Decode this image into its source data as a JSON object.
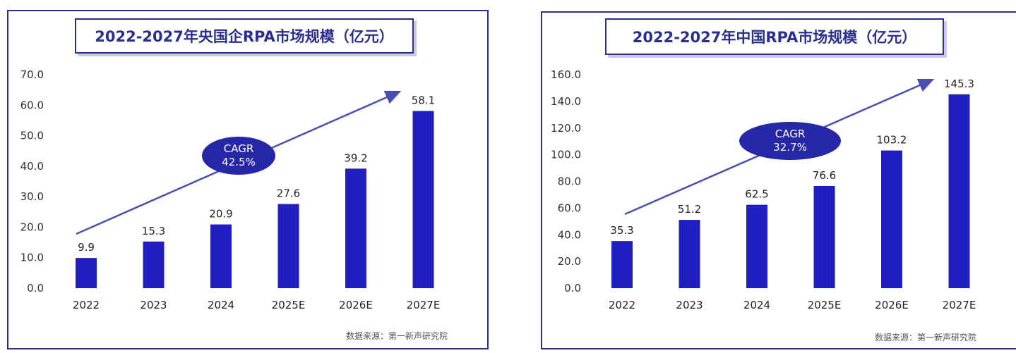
{
  "colors": {
    "bar": "#2020c0",
    "frame": "#2a2f8f",
    "ellipse": "#2626a8",
    "arrow": "#4a50b0"
  },
  "chart_data": [
    {
      "type": "bar",
      "title": "2022-2027年央国企RPA市场规模（亿元）",
      "categories": [
        "2022",
        "2023",
        "2024",
        "2025E",
        "2026E",
        "2027E"
      ],
      "values": [
        9.9,
        15.3,
        20.9,
        27.6,
        39.2,
        58.1
      ],
      "value_labels": [
        "9.9",
        "15.3",
        "20.9",
        "27.6",
        "39.2",
        "58.1"
      ],
      "yticks": [
        "0.0",
        "10.0",
        "20.0",
        "30.0",
        "40.0",
        "50.0",
        "60.0",
        "70.0"
      ],
      "ylim": [
        0,
        70
      ],
      "xlabel": "",
      "ylabel": "",
      "grid": false,
      "legend": "none",
      "cagr_label": "CAGR",
      "cagr_value": "42.5%",
      "source": "数据来源：第一新声研究院"
    },
    {
      "type": "bar",
      "title": "2022-2027年中国RPA市场规模（亿元）",
      "categories": [
        "2022",
        "2023",
        "2024",
        "2025E",
        "2026E",
        "2027E"
      ],
      "values": [
        35.3,
        51.2,
        62.5,
        76.6,
        103.2,
        145.3
      ],
      "value_labels": [
        "35.3",
        "51.2",
        "62.5",
        "76.6",
        "103.2",
        "145.3"
      ],
      "yticks": [
        "0.0",
        "20.0",
        "40.0",
        "60.0",
        "80.0",
        "100.0",
        "120.0",
        "140.0",
        "160.0"
      ],
      "ylim": [
        0,
        160
      ],
      "xlabel": "",
      "ylabel": "",
      "grid": false,
      "legend": "none",
      "cagr_label": "CAGR",
      "cagr_value": "32.7%",
      "source": "数据来源：第一新声研究院"
    }
  ]
}
